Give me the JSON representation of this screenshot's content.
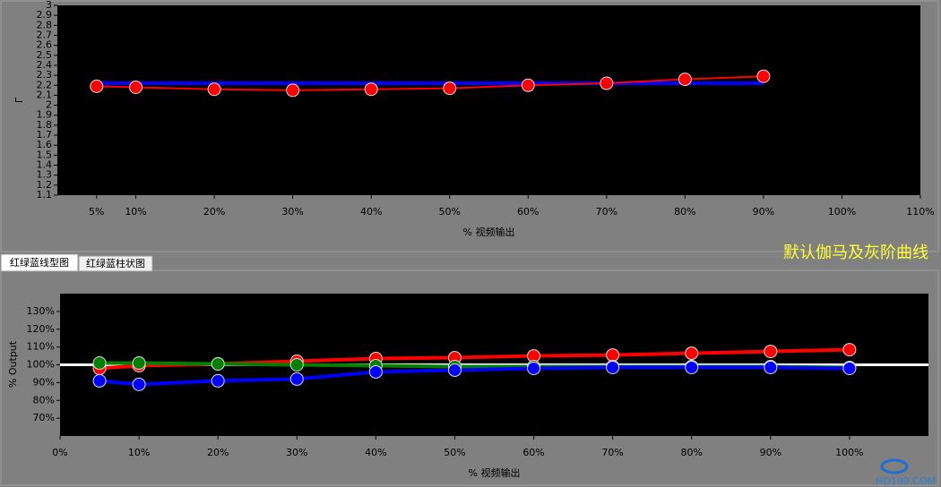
{
  "chart_data": [
    {
      "type": "line",
      "xlabel": "% 视频输出",
      "ylabel": "Γ",
      "xlim": [
        0,
        110
      ],
      "ylim": [
        1.1,
        3
      ],
      "xticks": [
        {
          "value": 5,
          "label": "5%"
        },
        {
          "value": 10,
          "label": "10%"
        },
        {
          "value": 20,
          "label": "20%"
        },
        {
          "value": 30,
          "label": "30%"
        },
        {
          "value": 40,
          "label": "40%"
        },
        {
          "value": 50,
          "label": "50%"
        },
        {
          "value": 60,
          "label": "60%"
        },
        {
          "value": 70,
          "label": "70%"
        },
        {
          "value": 80,
          "label": "80%"
        },
        {
          "value": 90,
          "label": "90%"
        },
        {
          "value": 100,
          "label": "100%"
        },
        {
          "value": 110,
          "label": "110%"
        }
      ],
      "yticks": [
        1.1,
        1.2,
        1.3,
        1.4,
        1.5,
        1.6,
        1.7,
        1.8,
        1.9,
        2,
        2.1,
        2.2,
        2.3,
        2.4,
        2.5,
        2.6,
        2.7,
        2.8,
        2.9,
        3
      ],
      "x": [
        5,
        10,
        20,
        30,
        40,
        50,
        60,
        70,
        80,
        90
      ],
      "series": [
        {
          "color": "#0000ff",
          "markers": false,
          "values": [
            2.22,
            2.22,
            2.22,
            2.22,
            2.22,
            2.22,
            2.22,
            2.22,
            2.22,
            2.22
          ]
        },
        {
          "color": "#ff0000",
          "markers": true,
          "values": [
            2.19,
            2.18,
            2.16,
            2.15,
            2.16,
            2.17,
            2.2,
            2.22,
            2.26,
            2.29
          ]
        }
      ]
    },
    {
      "type": "line",
      "xlabel": "% 视频输出",
      "ylabel": "% Output",
      "xlim": [
        0,
        110
      ],
      "ylim": [
        60,
        140
      ],
      "xticks": [
        {
          "value": 0,
          "label": "0%"
        },
        {
          "value": 10,
          "label": "10%"
        },
        {
          "value": 20,
          "label": "20%"
        },
        {
          "value": 30,
          "label": "30%"
        },
        {
          "value": 40,
          "label": "40%"
        },
        {
          "value": 50,
          "label": "50%"
        },
        {
          "value": 60,
          "label": "60%"
        },
        {
          "value": 70,
          "label": "70%"
        },
        {
          "value": 80,
          "label": "80%"
        },
        {
          "value": 90,
          "label": "90%"
        },
        {
          "value": 100,
          "label": "100%"
        }
      ],
      "yticks": [
        {
          "value": 70,
          "label": "70%"
        },
        {
          "value": 80,
          "label": "80%"
        },
        {
          "value": 90,
          "label": "90%"
        },
        {
          "value": 100,
          "label": "100%"
        },
        {
          "value": 110,
          "label": "110%"
        },
        {
          "value": 120,
          "label": "120%"
        },
        {
          "value": 130,
          "label": "130%"
        }
      ],
      "reference_line": 100,
      "x": [
        5,
        10,
        20,
        30,
        40,
        50,
        60,
        70,
        80,
        90,
        100
      ],
      "series": [
        {
          "color": "#ff0000",
          "markers": true,
          "values": [
            98,
            99.5,
            100.5,
            102,
            103.5,
            104,
            105,
            105.5,
            106.5,
            107.5,
            108.5
          ]
        },
        {
          "color": "#008000",
          "markers": true,
          "values": [
            101,
            101,
            100.5,
            100,
            99.5,
            99,
            99,
            99,
            99,
            99,
            98.5
          ]
        },
        {
          "color": "#0000ff",
          "markers": true,
          "values": [
            91,
            89,
            91,
            92,
            96,
            97,
            98,
            98.5,
            98.5,
            98.5,
            98
          ]
        }
      ]
    }
  ],
  "tabs": [
    "红绿蓝线型图",
    "红绿蓝柱状图"
  ],
  "annotation": "默认伽马及灰阶曲线",
  "watermark": "HD199.COM"
}
